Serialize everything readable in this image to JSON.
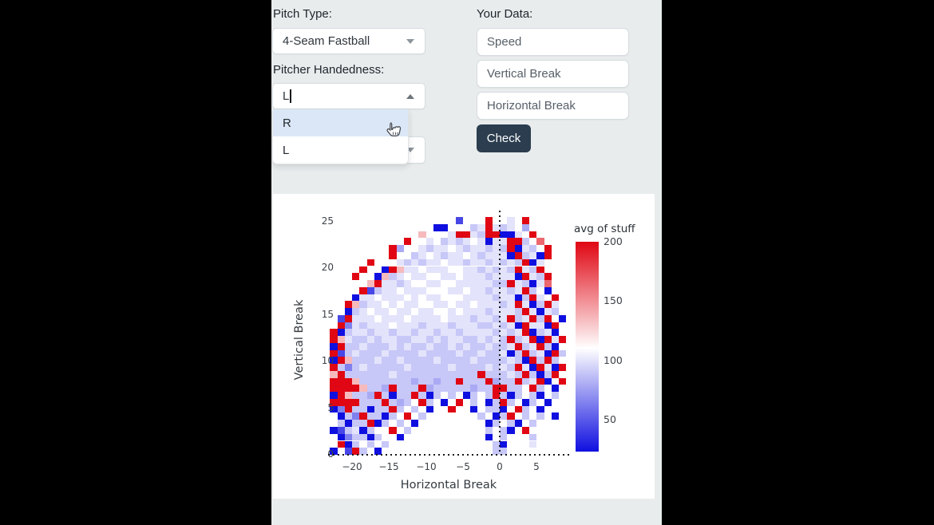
{
  "filters": {
    "pitch_type_label": "Pitch Type:",
    "pitch_type_value": "4-Seam Fastball",
    "handedness_label": "Pitcher Handedness:",
    "handedness_input_value": "L",
    "handedness_options": [
      "R",
      "L"
    ]
  },
  "your_data": {
    "label": "Your Data:",
    "inputs": [
      {
        "placeholder": "Speed",
        "value": ""
      },
      {
        "placeholder": "Vertical Break",
        "value": ""
      },
      {
        "placeholder": "Horizontal Break",
        "value": ""
      }
    ],
    "check_label": "Check"
  },
  "chart_data": {
    "type": "heatmap",
    "xlabel": "Horizontal Break",
    "ylabel": "Vertical Break",
    "x_ticks": [
      -20,
      -15,
      -10,
      -5,
      0,
      5
    ],
    "y_ticks": [
      0,
      5,
      10,
      15,
      20,
      25
    ],
    "xlim": [
      -23.5,
      9.5
    ],
    "ylim": [
      -0.5,
      26
    ],
    "grid_x_start": -23,
    "grid_cell_w": 1,
    "grid_y_top": 25.5,
    "grid_cell_h": 0.75,
    "value_map": {
      "0": 25,
      "1": 45,
      "2": 65,
      "3": 80,
      "4": 90,
      "5": 100,
      "6": 110,
      "7": 135,
      "8": 165,
      "9": 200
    },
    "rows": [
      ".................1...9.65.9.....",
      "..............00...45954563.....",
      "............7...5995499005.9....",
      "..........9..5.454565055994.8...",
      "........93..5455654554549054.9..",
      "........9..4565455654555094509..",
      ".....9...54545565545545454905...",
      "....9..0975565556655454549549...",
      "...9..074565566556555455509549..",
      ".....7955456655665555544954058..",
      "....914556555666556554554594.0..",
      "...05565556565566655554550495.9.",
      "..97455656556655655655545950495.",
      "..04565565565566565554555495054.",
      ".19555655565555655545545945949.0",
      ".925455565554555455544545095509.",
      "9045545545545545545555454590450.",
      "97544545544554545544545494590959",
      "0944544454544544545445445945940.",
      "91454445444454444544544504945094",
      "0974445445444454444544445409494.",
      "94245444445444445444454549509509",
      "7944444454444444444494445494049.",
      "999744444443443449444934494590.9",
      "99997443944493444443449944.94.0.",
      "097443940449404.4.04.49404.40.4.",
      "99994449434.94.0.9.4.0494.04.0..",
      "0294404494.4.0..9..0.440.94.0...",
      ".04294404.9.4.......4.049.4.4.0.",
      ".4044904.4.0.........04.40.4....",
      "014504..9.4..........4.40.9.....",
      ".024404..0...........0.4...4....",
      ".904.4.4..............40...5....",
      "0.194.0...............44........"
    ],
    "colorbar": {
      "title": "avg of stuff",
      "ticks": [
        200,
        150,
        100,
        50
      ],
      "min": 23,
      "max": 200,
      "white_point": 110,
      "color_low": "#0f0fe0",
      "color_high": "#e00613"
    },
    "reference_lines": {
      "vline_x": 0,
      "hline_y": 0,
      "style": "dotted"
    },
    "legend_position": "right",
    "grid": false
  }
}
